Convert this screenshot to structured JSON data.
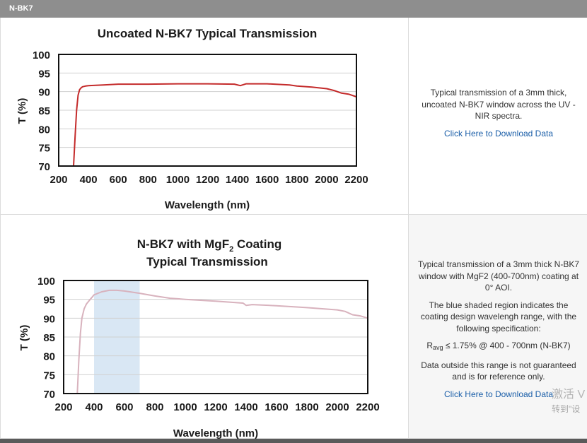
{
  "header": {
    "label": "N-BK7"
  },
  "panels": [
    {
      "description": "Typical transmission of a 3mm thick, uncoated N-BK7 window across the UV - NIR spectra.",
      "link": "Click Here to Download Data"
    },
    {
      "description": "Typical transmission of a 3mm thick N-BK7 window with MgF2 (400-700nm) coating at 0° AOI.",
      "shaded_note": "The blue shaded region indicates the coating design wavelengh range, with the following specification:",
      "spec_symbol": "R",
      "spec_subscript": "avg",
      "spec_text": " ≤ 1.75% @ 400 - 700nm (N-BK7)",
      "disclaimer": "Data outside this range is not guaranteed and is for reference only.",
      "link": "Click Here to Download Data"
    }
  ],
  "watermark": {
    "line1": "激活 V",
    "line2": "转到\"设"
  },
  "chart_data": [
    {
      "type": "line",
      "title": "Uncoated N-BK7 Typical Transmission",
      "xlabel": "Wavelength (nm)",
      "ylabel": "T (%)",
      "xlim": [
        200,
        2200
      ],
      "ylim": [
        70,
        100
      ],
      "xticks": [
        "200",
        "400",
        "600",
        "800",
        "1000",
        "1200",
        "1400",
        "1600",
        "1800",
        "2000",
        "2200"
      ],
      "yticks": [
        "100",
        "95",
        "90",
        "85",
        "80",
        "75",
        "70"
      ],
      "grid": "horizontal",
      "line_color": "#c42b2b",
      "series": [
        {
          "x": [
            300,
            310,
            320,
            330,
            340,
            350,
            360,
            380,
            400,
            500,
            600,
            800,
            1000,
            1200,
            1380,
            1420,
            1460,
            1600,
            1750,
            1800,
            1900,
            2000,
            2050,
            2100,
            2150,
            2200
          ],
          "y": [
            70,
            78,
            85,
            89,
            90.5,
            91,
            91.3,
            91.5,
            91.6,
            91.8,
            92,
            92,
            92.1,
            92.1,
            92,
            91.6,
            92.1,
            92.1,
            91.8,
            91.5,
            91.2,
            90.8,
            90.3,
            89.6,
            89.3,
            88.6
          ]
        }
      ]
    },
    {
      "type": "line",
      "title_line1_pre": "N-BK7 with MgF",
      "title_line1_sub": "2",
      "title_line1_post": " Coating",
      "title_line2": "Typical Transmission",
      "xlabel": "Wavelength (nm)",
      "ylabel": "T (%)",
      "xlim": [
        200,
        2200
      ],
      "ylim": [
        70,
        100
      ],
      "xticks": [
        "200",
        "400",
        "600",
        "800",
        "1000",
        "1200",
        "1400",
        "1600",
        "1800",
        "2000",
        "2200"
      ],
      "yticks": [
        "100",
        "95",
        "90",
        "85",
        "80",
        "75",
        "70"
      ],
      "grid": "horizontal",
      "shaded_range": [
        400,
        700
      ],
      "shade_color": "#d9e7f4",
      "line_color": "#d8b2bd",
      "series": [
        {
          "x": [
            290,
            300,
            310,
            320,
            335,
            350,
            375,
            400,
            450,
            500,
            550,
            600,
            700,
            800,
            900,
            1000,
            1200,
            1380,
            1400,
            1440,
            1600,
            1800,
            2000,
            2050,
            2100,
            2150,
            2200
          ],
          "y": [
            70,
            79,
            86,
            90,
            92.5,
            93.8,
            95,
            96.2,
            97,
            97.4,
            97.4,
            97.2,
            96.6,
            95.9,
            95.3,
            95,
            94.5,
            94,
            93.4,
            93.6,
            93.3,
            92.8,
            92.2,
            91.8,
            90.9,
            90.6,
            90
          ]
        }
      ]
    }
  ]
}
